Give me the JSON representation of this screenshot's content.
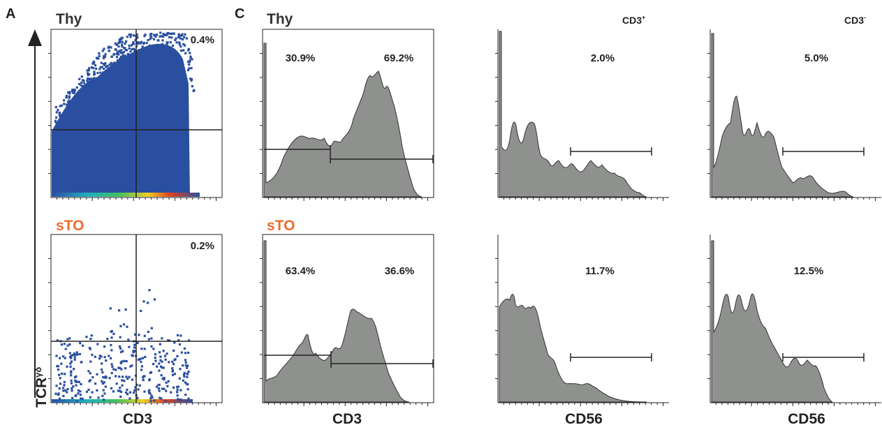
{
  "figure": {
    "panel_letters": [
      "A",
      "C"
    ],
    "sample_labels": {
      "thy": "Thy",
      "sto": "sTO"
    },
    "y_axis_label_main": "TCR",
    "y_axis_label_sup": "γδ",
    "xlabels": {
      "cd3": "CD3",
      "cd56": "CD56"
    },
    "col_headers": {
      "cd3pos_main": "CD3",
      "cd3pos_sup": "+",
      "cd3neg_main": "CD3",
      "cd3neg_sup": "-"
    },
    "colors": {
      "thy_label": "#333333",
      "sto_label": "#ef6c2e",
      "histogram_fill": "#8e918e",
      "dot_color": "#2a4fa0"
    }
  },
  "chart_data": [
    {
      "type": "scatter",
      "panel": "A",
      "sample": "Thy",
      "xlabel": "CD3",
      "ylabel": "TCRγδ",
      "quadrant_gate_label": "0.4%"
    },
    {
      "type": "scatter",
      "panel": "A",
      "sample": "sTO",
      "xlabel": "CD3",
      "ylabel": "TCRγδ",
      "quadrant_gate_label": "0.2%"
    },
    {
      "type": "area",
      "panel": "C",
      "sample": "Thy",
      "xlabel": "CD3",
      "gate_labels": [
        "30.9%",
        "69.2%"
      ]
    },
    {
      "type": "area",
      "panel": "C",
      "sample": "Thy",
      "header": "CD3+",
      "xlabel": "CD56",
      "gate_labels": [
        "2.0%"
      ]
    },
    {
      "type": "area",
      "panel": "C",
      "sample": "Thy",
      "header": "CD3-",
      "xlabel": "CD56",
      "gate_labels": [
        "5.0%"
      ]
    },
    {
      "type": "area",
      "panel": "C",
      "sample": "sTO",
      "xlabel": "CD3",
      "gate_labels": [
        "63.4%",
        "36.6%"
      ]
    },
    {
      "type": "area",
      "panel": "C",
      "sample": "sTO",
      "header": "CD3+",
      "xlabel": "CD56",
      "gate_labels": [
        "11.7%"
      ]
    },
    {
      "type": "area",
      "panel": "C",
      "sample": "sTO",
      "header": "CD3-",
      "xlabel": "CD56",
      "gate_labels": [
        "12.5%"
      ]
    }
  ]
}
